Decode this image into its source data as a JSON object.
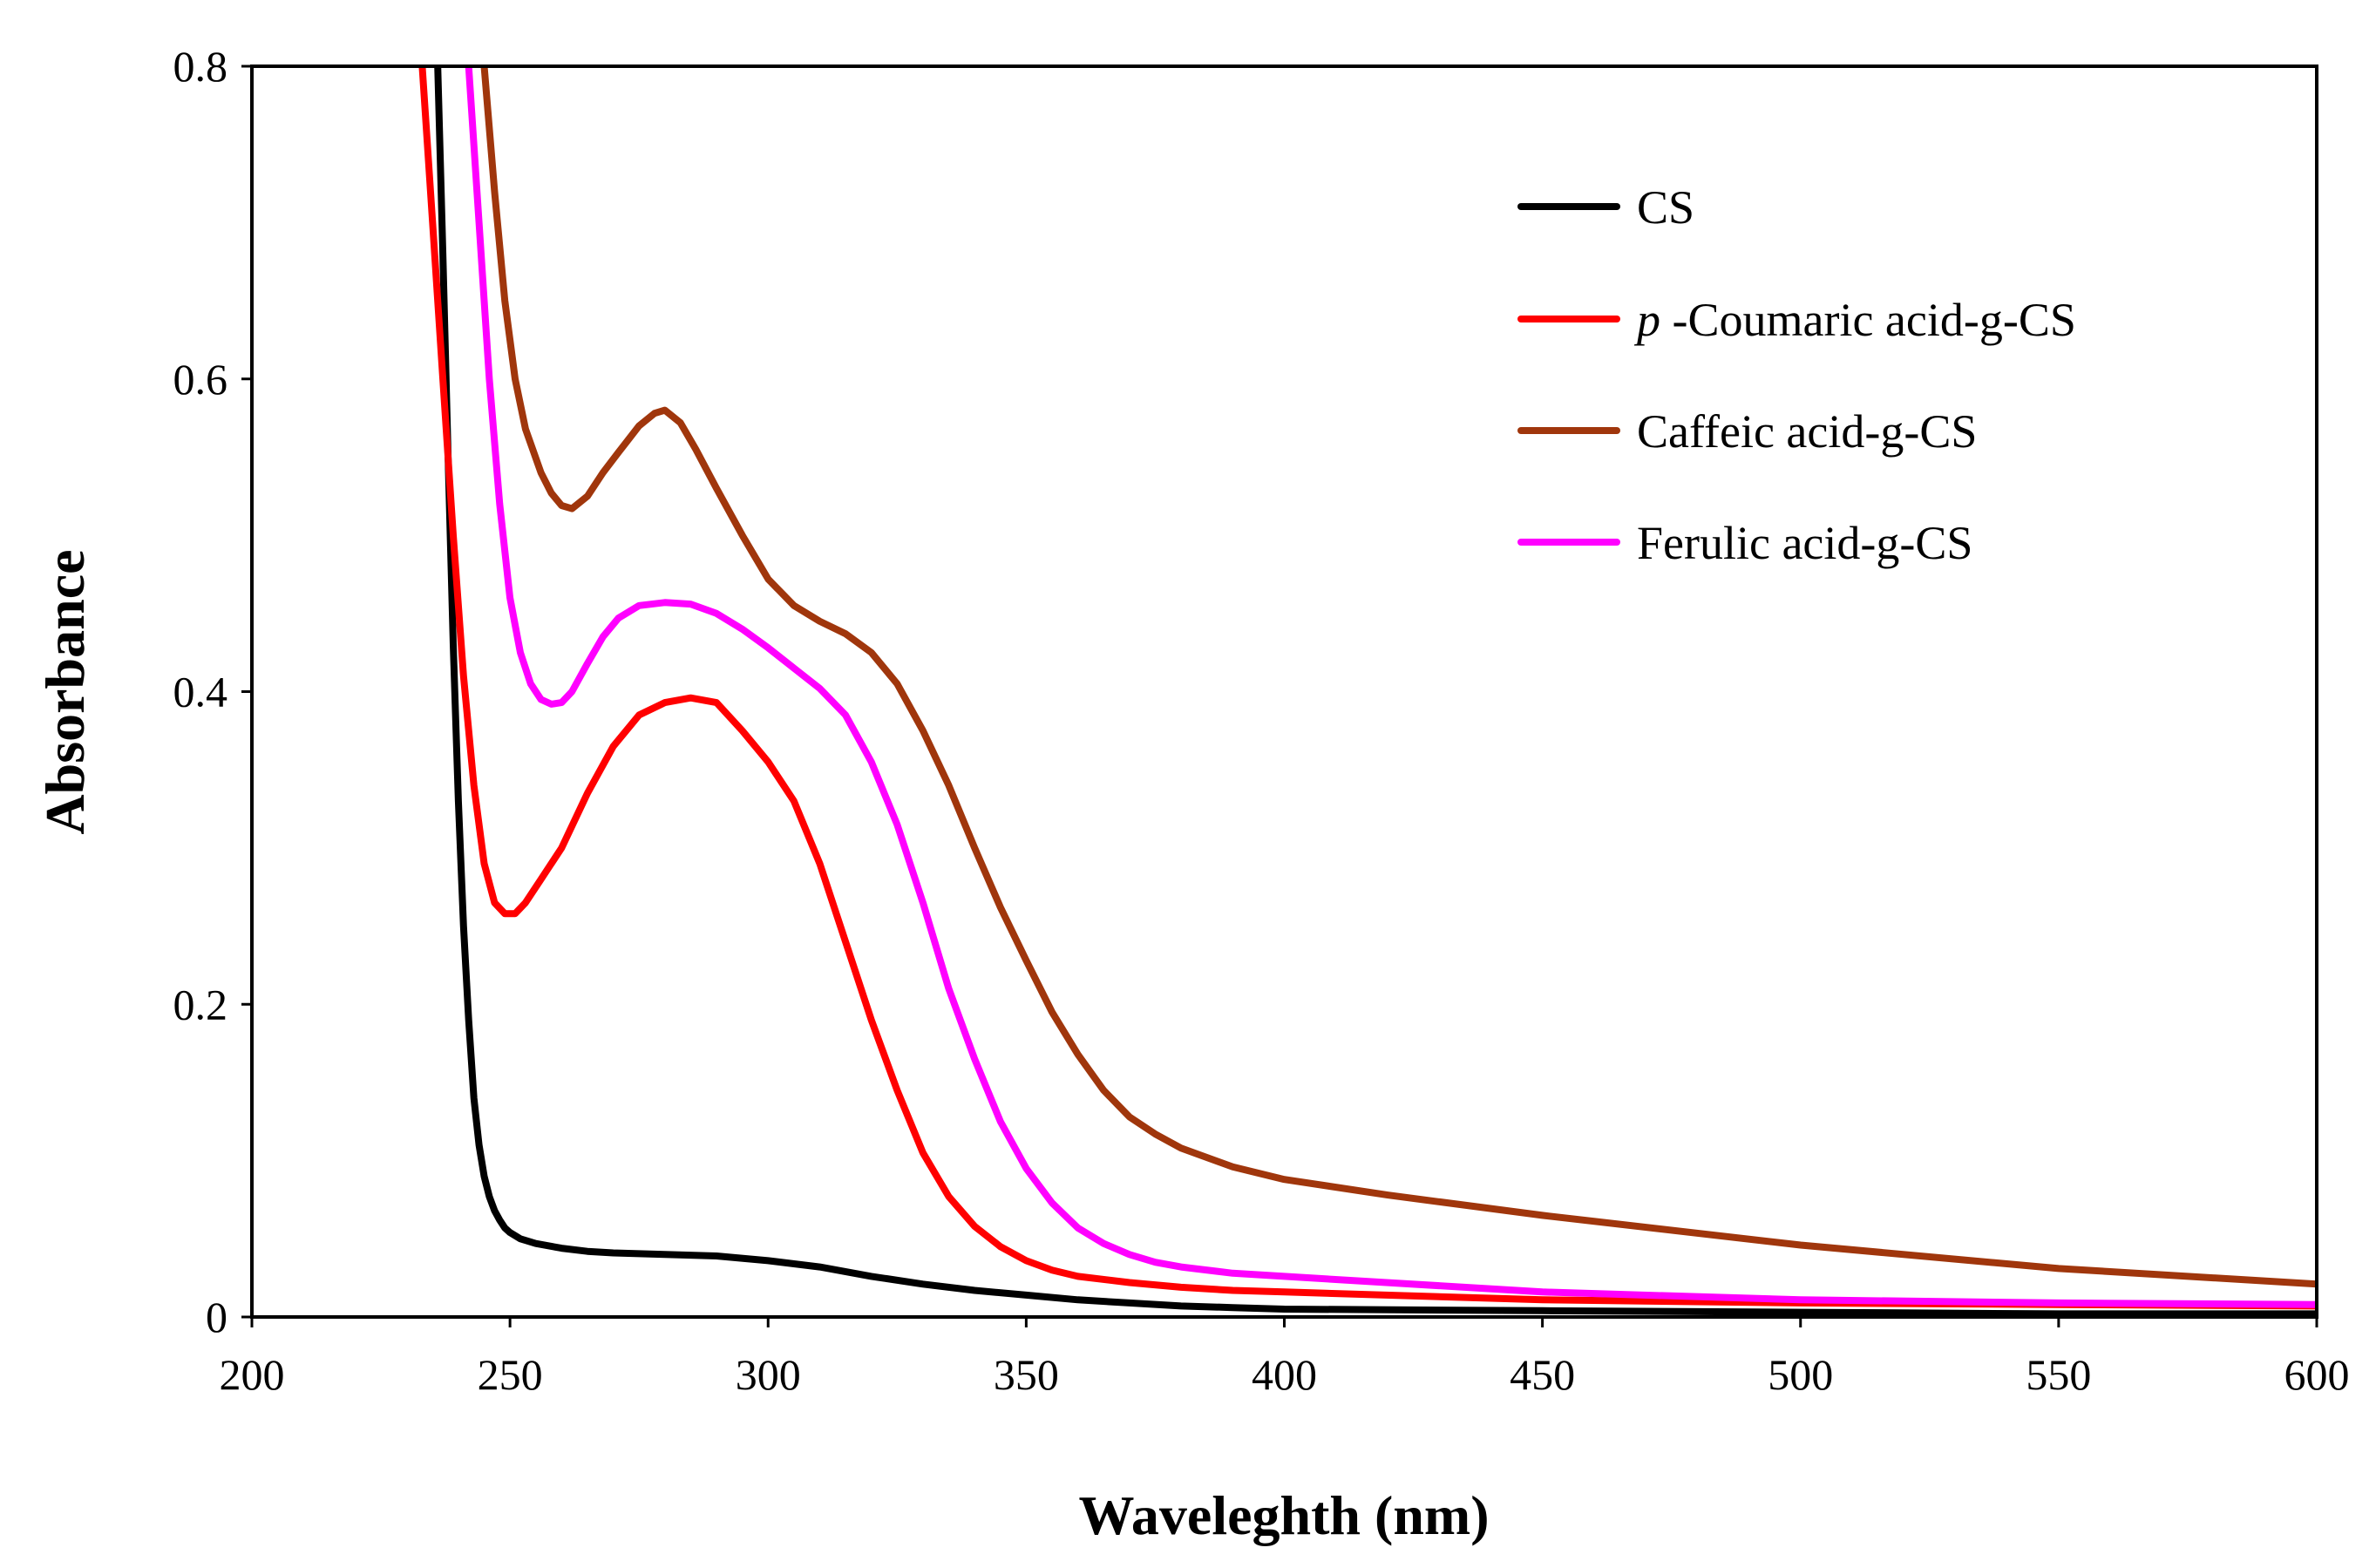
{
  "chart_data": {
    "type": "line",
    "title": "",
    "xlabel": "Waveleghth (nm)",
    "ylabel": "Absorbance",
    "xlim": [
      200,
      600
    ],
    "ylim": [
      0,
      0.8
    ],
    "xticks": [
      200,
      250,
      300,
      350,
      400,
      450,
      500,
      550,
      600
    ],
    "xtick_labels": [
      "200",
      "250",
      "300",
      "350",
      "400",
      "450",
      "500",
      "550",
      "600"
    ],
    "yticks": [
      0,
      0.2,
      0.4,
      0.6,
      0.8
    ],
    "ytick_labels": [
      "0",
      "0.2",
      "0.4",
      "0.6",
      "0.8"
    ],
    "grid": false,
    "legend_position": "top-right",
    "series": [
      {
        "name": "CS",
        "legend_prefix": "",
        "legend_label": "CS",
        "color": "#000000",
        "x": [
          236,
          237,
          238,
          239,
          240,
          241,
          242,
          243,
          244,
          245,
          246,
          247,
          248,
          249,
          250,
          252,
          255,
          260,
          265,
          270,
          280,
          290,
          300,
          310,
          320,
          330,
          340,
          350,
          360,
          370,
          380,
          390,
          400,
          450,
          500,
          550,
          600
        ],
        "y": [
          0.8,
          0.68,
          0.55,
          0.43,
          0.33,
          0.25,
          0.19,
          0.14,
          0.11,
          0.09,
          0.077,
          0.068,
          0.062,
          0.057,
          0.054,
          0.05,
          0.047,
          0.044,
          0.042,
          0.041,
          0.04,
          0.039,
          0.036,
          0.032,
          0.026,
          0.021,
          0.017,
          0.014,
          0.011,
          0.009,
          0.007,
          0.006,
          0.005,
          0.004,
          0.003,
          0.002,
          0.002
        ]
      },
      {
        "name": "p-Coumaric acid-g-CS",
        "legend_prefix": "p",
        "legend_label": " -Coumaric acid-g-CS",
        "color": "#ff0000",
        "x": [
          233,
          235,
          237,
          239,
          241,
          243,
          245,
          247,
          249,
          251,
          253,
          256,
          260,
          265,
          270,
          275,
          280,
          285,
          290,
          295,
          300,
          305,
          310,
          315,
          320,
          325,
          330,
          335,
          340,
          345,
          350,
          355,
          360,
          370,
          380,
          390,
          400,
          450,
          500,
          550,
          600
        ],
        "y": [
          0.8,
          0.7,
          0.6,
          0.5,
          0.41,
          0.34,
          0.29,
          0.265,
          0.258,
          0.258,
          0.265,
          0.28,
          0.3,
          0.335,
          0.365,
          0.385,
          0.393,
          0.396,
          0.393,
          0.375,
          0.355,
          0.33,
          0.29,
          0.24,
          0.19,
          0.145,
          0.105,
          0.077,
          0.058,
          0.045,
          0.036,
          0.03,
          0.026,
          0.022,
          0.019,
          0.017,
          0.016,
          0.011,
          0.009,
          0.008,
          0.007
        ]
      },
      {
        "name": "Caffeic acid-g-CS",
        "legend_prefix": "",
        "legend_label": "Caffeic acid-g-CS",
        "color": "#a0360c",
        "x": [
          245,
          247,
          249,
          251,
          253,
          256,
          258,
          260,
          262,
          265,
          268,
          271,
          275,
          278,
          280,
          283,
          286,
          290,
          295,
          300,
          305,
          310,
          315,
          320,
          325,
          330,
          335,
          340,
          345,
          350,
          355,
          360,
          365,
          370,
          375,
          380,
          390,
          400,
          420,
          450,
          500,
          550,
          600
        ],
        "y": [
          0.8,
          0.72,
          0.65,
          0.6,
          0.568,
          0.54,
          0.527,
          0.519,
          0.517,
          0.525,
          0.54,
          0.553,
          0.57,
          0.578,
          0.58,
          0.572,
          0.555,
          0.53,
          0.5,
          0.472,
          0.455,
          0.445,
          0.437,
          0.425,
          0.405,
          0.375,
          0.34,
          0.3,
          0.262,
          0.228,
          0.195,
          0.168,
          0.145,
          0.128,
          0.117,
          0.108,
          0.096,
          0.088,
          0.078,
          0.065,
          0.046,
          0.031,
          0.021
        ]
      },
      {
        "name": "Ferulic acid-g-CS",
        "legend_prefix": "",
        "legend_label": "Ferulic acid-g-CS",
        "color": "#ff00ff",
        "x": [
          242,
          244,
          246,
          248,
          250,
          252,
          254,
          256,
          258,
          260,
          262,
          265,
          268,
          271,
          275,
          280,
          285,
          290,
          295,
          300,
          305,
          310,
          315,
          320,
          325,
          330,
          335,
          340,
          345,
          350,
          355,
          360,
          365,
          370,
          375,
          380,
          390,
          400,
          450,
          500,
          550,
          600
        ],
        "y": [
          0.8,
          0.7,
          0.6,
          0.52,
          0.46,
          0.425,
          0.405,
          0.395,
          0.392,
          0.393,
          0.4,
          0.418,
          0.435,
          0.447,
          0.455,
          0.457,
          0.456,
          0.45,
          0.44,
          0.428,
          0.415,
          0.402,
          0.385,
          0.355,
          0.315,
          0.265,
          0.21,
          0.165,
          0.125,
          0.095,
          0.073,
          0.057,
          0.047,
          0.04,
          0.035,
          0.032,
          0.028,
          0.026,
          0.016,
          0.011,
          0.009,
          0.008
        ]
      }
    ]
  }
}
